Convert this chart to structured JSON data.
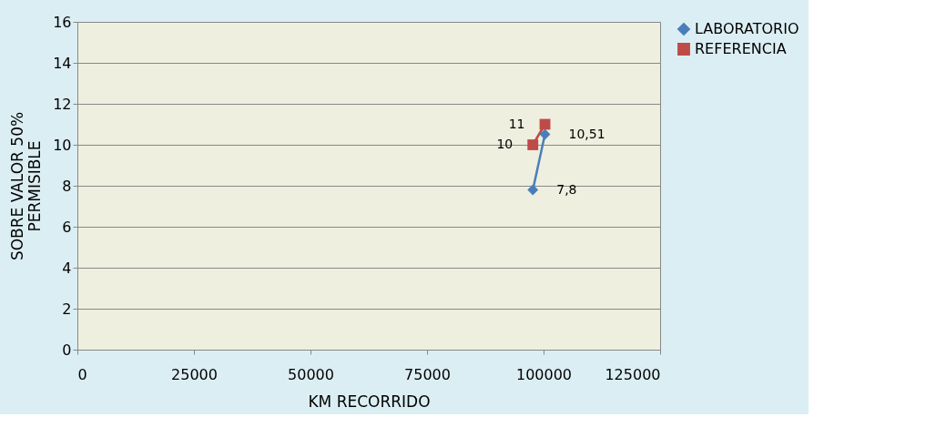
{
  "chart_data": {
    "type": "line",
    "xlabel": "KM  RECORRIDO",
    "ylabel": "SOBRE  VALOR 50%\nPERMISIBLE",
    "x": [
      97700,
      100300
    ],
    "series": [
      {
        "name": "LABORATORIO",
        "color": "#4a7ebb",
        "marker": "diamond",
        "values": [
          7.8,
          10.51
        ],
        "value_labels": [
          "7,8",
          "10,51"
        ]
      },
      {
        "name": "REFERENCIA",
        "color": "#be4b48",
        "marker": "square",
        "values": [
          10,
          11
        ],
        "value_labels": [
          "10",
          "11"
        ]
      }
    ],
    "xlim": [
      0,
      125000
    ],
    "xticks": [
      0,
      25000,
      50000,
      75000,
      100000,
      125000
    ],
    "ylim": [
      0,
      16
    ],
    "yticks": [
      0,
      2,
      4,
      6,
      8,
      10,
      12,
      14,
      16
    ],
    "grid": "y",
    "legend": "right"
  }
}
